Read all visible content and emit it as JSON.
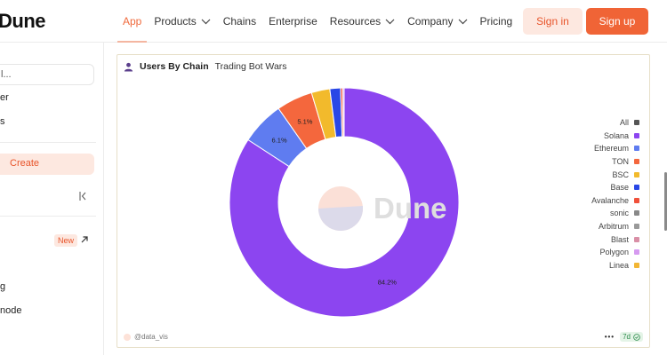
{
  "header": {
    "logo": "Dune",
    "nav": [
      {
        "label": "App",
        "active": true,
        "dropdown": false
      },
      {
        "label": "Products",
        "active": false,
        "dropdown": true
      },
      {
        "label": "Chains",
        "active": false,
        "dropdown": false
      },
      {
        "label": "Enterprise",
        "active": false,
        "dropdown": false
      },
      {
        "label": "Resources",
        "active": false,
        "dropdown": true
      },
      {
        "label": "Company",
        "active": false,
        "dropdown": true
      },
      {
        "label": "Pricing",
        "active": false,
        "dropdown": false
      }
    ],
    "signin_label": "Sign in",
    "signup_label": "Sign up"
  },
  "sidebar": {
    "search_text": "l...",
    "item1": "er",
    "item2": "s",
    "create_label": "Create",
    "new_badge": "New",
    "item3": "g",
    "item4": "node"
  },
  "card": {
    "title": "Users By Chain",
    "subtitle": "Trading Bot Wars",
    "watermark": "Dune",
    "footer_user": "@data_vis",
    "footer_dots": "•••",
    "footer_badge": "7d"
  },
  "chart_data": {
    "type": "pie",
    "title": "Users By Chain",
    "subtitle": "Trading Bot Wars",
    "legend_position": "right",
    "legend": [
      {
        "label": "All",
        "color": "#555555"
      },
      {
        "label": "Solana",
        "color": "#8c45f0"
      },
      {
        "label": "Ethereum",
        "color": "#5f7cf0"
      },
      {
        "label": "TON",
        "color": "#f4673d"
      },
      {
        "label": "BSC",
        "color": "#f2ba2c"
      },
      {
        "label": "Base",
        "color": "#2947e6"
      },
      {
        "label": "Avalanche",
        "color": "#f0503a"
      },
      {
        "label": "sonic",
        "color": "#888888"
      },
      {
        "label": "Arbitrum",
        "color": "#999999"
      },
      {
        "label": "Blast",
        "color": "#d98fa6"
      },
      {
        "label": "Polygon",
        "color": "#d69af0"
      },
      {
        "label": "Linea",
        "color": "#f2b634"
      }
    ],
    "slices": [
      {
        "label": "Solana",
        "value": 84.2,
        "color": "#8c45f0",
        "data_label": "84.2%"
      },
      {
        "label": "Ethereum",
        "value": 6.1,
        "color": "#5f7cf0",
        "data_label": "6.1%"
      },
      {
        "label": "TON",
        "value": 5.1,
        "color": "#f4673d",
        "data_label": "5.1%"
      },
      {
        "label": "BSC",
        "value": 2.6,
        "color": "#f2ba2c",
        "data_label": ""
      },
      {
        "label": "Base",
        "value": 1.5,
        "color": "#2947e6",
        "data_label": ""
      },
      {
        "label": "Avalanche",
        "value": 0.3,
        "color": "#f0503a",
        "data_label": ""
      },
      {
        "label": "Polygon",
        "value": 0.2,
        "color": "#d69af0",
        "data_label": ""
      }
    ]
  }
}
